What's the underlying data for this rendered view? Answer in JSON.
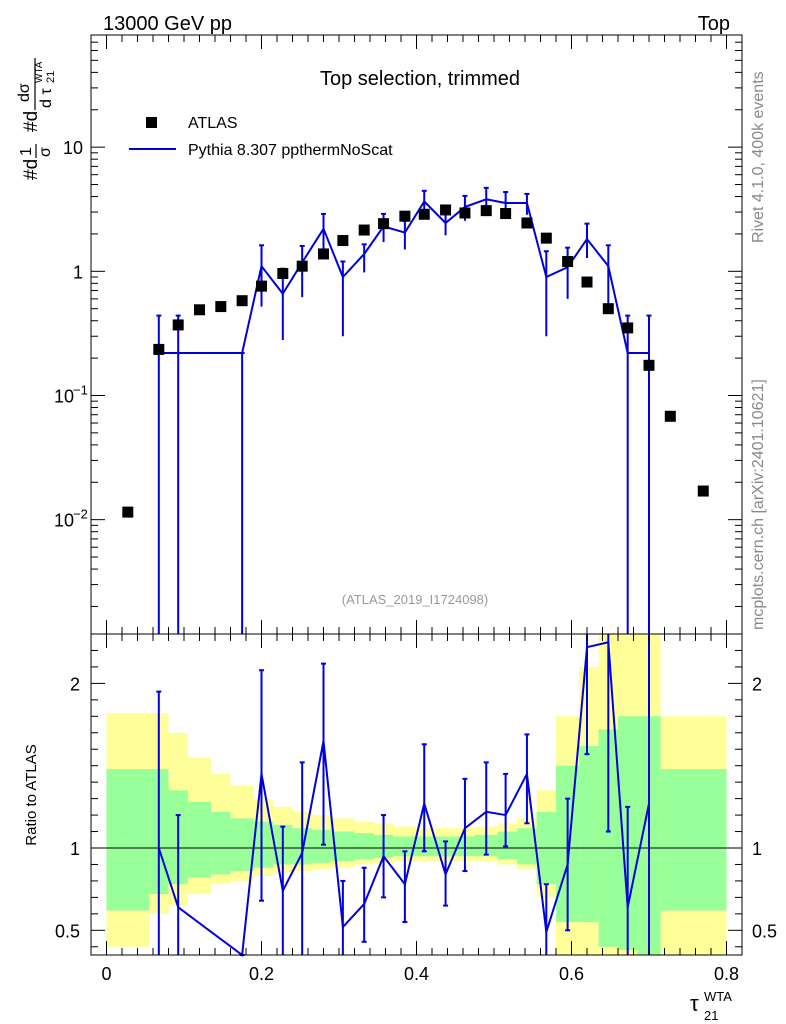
{
  "header": {
    "energy_label": "13000 GeV pp",
    "process_label": "Top"
  },
  "side_text": {
    "rivet": "Rivet 4.1.0,  400k events",
    "source": "mcplots.cern.ch [arXiv:2401.10621]"
  },
  "chart_data": {
    "type": "scatter",
    "title": "Top selection, trimmed",
    "analysis_id": "(ATLAS_2019_I1724098)",
    "ylabel": "#d1/σ #ddσ/dτ21WTA",
    "ylabel_parts": {
      "prefix1": "#d",
      "num1": "1",
      "den1": "σ",
      "prefix2": "#d",
      "num2": "dσ",
      "den2": "d τ",
      "sup": "WTA",
      "sub": "21"
    },
    "xlabel": "τ21WTA",
    "xlabel_parts": {
      "base": "τ",
      "sup": "WTA",
      "sub": "21"
    },
    "xlim": [
      -0.02,
      0.82
    ],
    "ylim": [
      0.0012,
      80
    ],
    "yscale": "log",
    "x_ticks": [
      "0",
      "0.2",
      "0.4",
      "0.6",
      "0.8"
    ],
    "y_ticks": [
      {
        "base": "10",
        "exp": "−2",
        "value": 0.01
      },
      {
        "base": "10",
        "exp": "−1",
        "value": 0.1
      },
      {
        "base": "1",
        "exp": "",
        "value": 1
      },
      {
        "base": "10",
        "exp": "",
        "value": 10
      }
    ],
    "legend": [
      "ATLAS",
      "Pythia 8.307 ppthermNoScat"
    ],
    "series": [
      {
        "name": "ATLAS",
        "marker": "square",
        "color": "#000000",
        "x": [
          0.0275,
          0.0675,
          0.0925,
          0.12,
          0.1475,
          0.175,
          0.2,
          0.2275,
          0.2525,
          0.28,
          0.305,
          0.3325,
          0.3575,
          0.385,
          0.41,
          0.4375,
          0.4625,
          0.49,
          0.515,
          0.5425,
          0.5675,
          0.595,
          0.62,
          0.6475,
          0.6725,
          0.7,
          0.7275,
          0.77
        ],
        "y": [
          0.0115,
          0.235,
          0.37,
          0.49,
          0.52,
          0.58,
          0.76,
          0.96,
          1.1,
          1.38,
          1.77,
          2.15,
          2.42,
          2.78,
          2.88,
          3.12,
          2.95,
          3.08,
          2.92,
          2.45,
          1.85,
          1.2,
          0.82,
          0.5,
          0.35,
          0.175,
          0.068,
          0.017
        ]
      },
      {
        "name": "Pythia 8.307 ppthermNoScat",
        "color": "#0000dd",
        "steps": [
          {
            "x_lo": 0.066,
            "x_hi": 0.175,
            "y": 0.22
          }
        ],
        "points": [
          {
            "x": 0.175,
            "y": 0.22
          },
          {
            "x": 0.2,
            "y": 1.1,
            "ylo": 0.52,
            "yhi": 1.62
          },
          {
            "x": 0.2275,
            "y": 0.66,
            "ylo": 0.28,
            "yhi": 1.05
          },
          {
            "x": 0.2525,
            "y": 1.18,
            "ylo": 0.62,
            "yhi": 1.6
          },
          {
            "x": 0.28,
            "y": 2.2,
            "ylo": 1.42,
            "yhi": 2.9
          },
          {
            "x": 0.305,
            "y": 0.9,
            "ylo": 0.3,
            "yhi": 1.2
          },
          {
            "x": 0.3325,
            "y": 1.38,
            "ylo": 0.98,
            "yhi": 1.65
          },
          {
            "x": 0.3575,
            "y": 2.3,
            "ylo": 1.72,
            "yhi": 2.9
          },
          {
            "x": 0.385,
            "y": 2.05,
            "ylo": 1.5,
            "yhi": 2.55
          },
          {
            "x": 0.41,
            "y": 3.65,
            "ylo": 2.85,
            "yhi": 4.45
          },
          {
            "x": 0.4375,
            "y": 2.45,
            "ylo": 1.95,
            "yhi": 3.05
          },
          {
            "x": 0.4625,
            "y": 3.3,
            "ylo": 2.55,
            "yhi": 4.05
          },
          {
            "x": 0.49,
            "y": 3.8,
            "ylo": 3.0,
            "yhi": 4.7
          },
          {
            "x": 0.515,
            "y": 3.55,
            "ylo": 2.95,
            "yhi": 4.35
          },
          {
            "x": 0.5425,
            "y": 3.55,
            "ylo": 2.85,
            "yhi": 4.2
          },
          {
            "x": 0.5675,
            "y": 0.9,
            "ylo": 0.3,
            "yhi": 1.45
          },
          {
            "x": 0.595,
            "y": 1.08,
            "ylo": 0.6,
            "yhi": 1.55
          },
          {
            "x": 0.62,
            "y": 1.82,
            "ylo": 1.28,
            "yhi": 2.42
          },
          {
            "x": 0.6475,
            "y": 1.1,
            "ylo": 0.55,
            "yhi": 1.62
          },
          {
            "x": 0.6725,
            "y": 0.22,
            "ylo": 0.001,
            "yhi": 0.44
          },
          {
            "x": 0.7,
            "y": 0.22,
            "ylo": 0.001,
            "yhi": 0.44
          }
        ],
        "lower_errors": [
          {
            "x": 0.0675,
            "ylo": 0.001,
            "yhi": 0.44
          },
          {
            "x": 0.0925,
            "ylo": 0.001,
            "yhi": 0.44
          },
          {
            "x": 0.175,
            "ylo": 0.001,
            "yhi": 0.22
          }
        ],
        "plateau": {
          "x_lo": 0.673,
          "x_hi": 0.7,
          "y": 0.22
        }
      }
    ],
    "ratio": {
      "ylabel": "Ratio to ATLAS",
      "ylim": [
        0.35,
        2.3
      ],
      "y_ticks": [
        "0.5",
        "1",
        "2"
      ],
      "y_tick_values": [
        0.5,
        1,
        2
      ],
      "bands": {
        "edges": [
          0.0,
          0.055,
          0.08,
          0.105,
          0.135,
          0.16,
          0.19,
          0.215,
          0.24,
          0.265,
          0.29,
          0.32,
          0.345,
          0.37,
          0.4,
          0.425,
          0.45,
          0.475,
          0.505,
          0.53,
          0.555,
          0.58,
          0.61,
          0.635,
          0.66,
          0.685,
          0.715,
          0.74,
          0.8
        ],
        "yellow_lo": [
          0.4,
          0.6,
          0.65,
          0.72,
          0.78,
          0.8,
          0.83,
          0.85,
          0.86,
          0.87,
          0.88,
          0.9,
          0.91,
          0.92,
          0.92,
          0.92,
          0.92,
          0.92,
          0.9,
          0.87,
          0.7,
          0.35,
          0.35,
          0.35,
          0.35,
          0.35,
          0.35,
          0.35
        ],
        "yellow_hi": [
          1.82,
          1.82,
          1.7,
          1.55,
          1.45,
          1.38,
          1.3,
          1.25,
          1.22,
          1.2,
          1.18,
          1.16,
          1.15,
          1.13,
          1.12,
          1.12,
          1.12,
          1.13,
          1.15,
          1.18,
          1.35,
          1.8,
          2.1,
          2.3,
          2.3,
          2.3,
          1.8,
          1.8
        ],
        "green_lo": [
          0.62,
          0.72,
          0.78,
          0.82,
          0.84,
          0.86,
          0.88,
          0.9,
          0.9,
          0.91,
          0.92,
          0.93,
          0.94,
          0.95,
          0.95,
          0.95,
          0.95,
          0.95,
          0.93,
          0.9,
          0.78,
          0.55,
          0.55,
          0.4,
          0.38,
          0.35,
          0.62,
          0.62
        ],
        "green_hi": [
          1.48,
          1.48,
          1.35,
          1.28,
          1.22,
          1.18,
          1.16,
          1.14,
          1.12,
          1.11,
          1.1,
          1.09,
          1.08,
          1.07,
          1.07,
          1.07,
          1.07,
          1.08,
          1.1,
          1.12,
          1.22,
          1.5,
          1.62,
          1.72,
          1.8,
          1.8,
          1.48,
          1.48
        ]
      },
      "points": [
        {
          "x": 0.0675,
          "y": 1.0,
          "ylo": 0.2,
          "yhi": 1.95
        },
        {
          "x": 0.0925,
          "y": 0.64,
          "ylo": 0.2,
          "yhi": 1.2
        },
        {
          "x": 0.175,
          "y": 0.32,
          "ylo": 0.2,
          "yhi": 0.35
        },
        {
          "x": 0.2,
          "y": 1.45,
          "ylo": 0.68,
          "yhi": 2.08
        },
        {
          "x": 0.2275,
          "y": 0.74,
          "ylo": 0.3,
          "yhi": 1.13
        },
        {
          "x": 0.2525,
          "y": 0.97,
          "ylo": 0.3,
          "yhi": 1.52
        },
        {
          "x": 0.28,
          "y": 1.65,
          "ylo": 1.02,
          "yhi": 2.12
        },
        {
          "x": 0.305,
          "y": 0.52,
          "ylo": 0.2,
          "yhi": 0.8
        },
        {
          "x": 0.3325,
          "y": 0.66,
          "ylo": 0.43,
          "yhi": 0.88
        },
        {
          "x": 0.3575,
          "y": 0.95,
          "ylo": 0.7,
          "yhi": 1.2
        },
        {
          "x": 0.385,
          "y": 0.78,
          "ylo": 0.55,
          "yhi": 0.98
        },
        {
          "x": 0.41,
          "y": 1.27,
          "ylo": 0.98,
          "yhi": 1.63
        },
        {
          "x": 0.4375,
          "y": 0.84,
          "ylo": 0.65,
          "yhi": 1.04
        },
        {
          "x": 0.4625,
          "y": 1.12,
          "ylo": 0.86,
          "yhi": 1.42
        },
        {
          "x": 0.49,
          "y": 1.22,
          "ylo": 0.96,
          "yhi": 1.52
        },
        {
          "x": 0.515,
          "y": 1.2,
          "ylo": 1.01,
          "yhi": 1.45
        },
        {
          "x": 0.5425,
          "y": 1.45,
          "ylo": 1.15,
          "yhi": 1.69
        },
        {
          "x": 0.5675,
          "y": 0.49,
          "ylo": 0.2,
          "yhi": 0.78
        },
        {
          "x": 0.595,
          "y": 0.9,
          "ylo": 0.5,
          "yhi": 1.3
        },
        {
          "x": 0.62,
          "y": 2.22,
          "ylo": 1.57,
          "yhi": 2.3
        },
        {
          "x": 0.6475,
          "y": 2.25,
          "ylo": 1.1,
          "yhi": 2.3
        },
        {
          "x": 0.6725,
          "y": 0.64,
          "ylo": 0.2,
          "yhi": 1.25
        },
        {
          "x": 0.7,
          "y": 1.27,
          "ylo": 0.2,
          "yhi": 2.3
        }
      ]
    }
  }
}
